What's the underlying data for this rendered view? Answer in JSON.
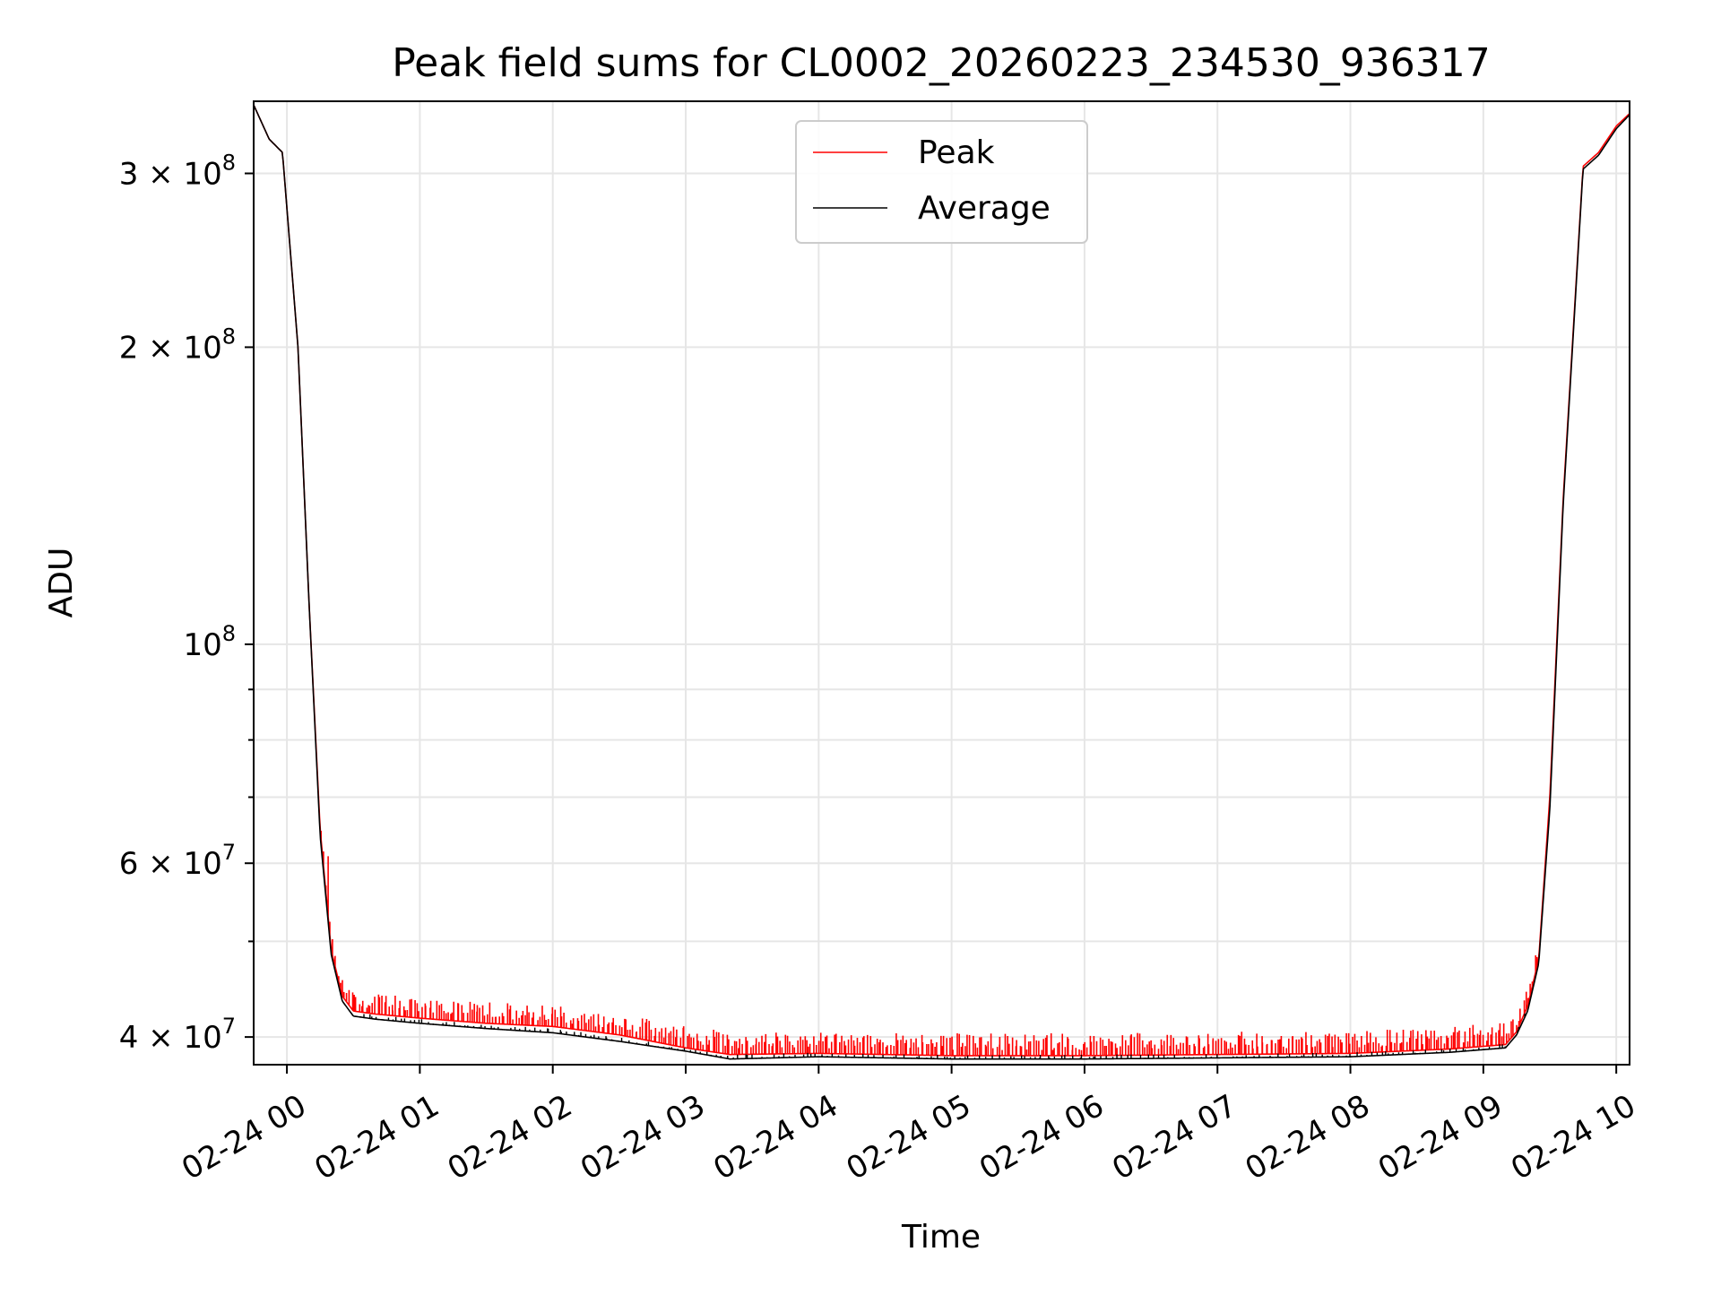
{
  "chart_data": {
    "type": "line",
    "title": "Peak field sums for CL0002_20260223_234530_936317",
    "xlabel": "Time",
    "ylabel": "ADU",
    "yscale": "log",
    "grid": true,
    "legend_position": "top-center",
    "xlim": [
      "2026-02-23T23:45",
      "2026-02-24T10:06"
    ],
    "ylim": [
      37500000,
      355000000
    ],
    "x_ticks": [
      {
        "value": "2026-02-24T00:00",
        "label": "02-24 00"
      },
      {
        "value": "2026-02-24T01:00",
        "label": "02-24 01"
      },
      {
        "value": "2026-02-24T02:00",
        "label": "02-24 02"
      },
      {
        "value": "2026-02-24T03:00",
        "label": "02-24 03"
      },
      {
        "value": "2026-02-24T04:00",
        "label": "02-24 04"
      },
      {
        "value": "2026-02-24T05:00",
        "label": "02-24 05"
      },
      {
        "value": "2026-02-24T06:00",
        "label": "02-24 06"
      },
      {
        "value": "2026-02-24T07:00",
        "label": "02-24 07"
      },
      {
        "value": "2026-02-24T08:00",
        "label": "02-24 08"
      },
      {
        "value": "2026-02-24T09:00",
        "label": "02-24 09"
      },
      {
        "value": "2026-02-24T10:00",
        "label": "02-24 10"
      }
    ],
    "y_ticks": [
      {
        "value": 40000000,
        "base": "4 × 10",
        "exp": "7"
      },
      {
        "value": 60000000,
        "base": "6 × 10",
        "exp": "7"
      },
      {
        "value": 100000000,
        "base": "10",
        "exp": "8"
      },
      {
        "value": 200000000,
        "base": "2 × 10",
        "exp": "8"
      },
      {
        "value": 300000000,
        "base": "3 × 10",
        "exp": "8"
      }
    ],
    "y_minor_ticks": [
      50000000,
      70000000,
      80000000,
      90000000
    ],
    "series": [
      {
        "name": "Peak",
        "color": "#ff0000",
        "x": [
          "2026-02-23T23:45",
          "2026-02-23T23:52",
          "2026-02-23T23:58",
          "2026-02-24T00:05",
          "2026-02-24T00:10",
          "2026-02-24T00:15",
          "2026-02-24T00:20",
          "2026-02-24T00:25",
          "2026-02-24T00:30",
          "2026-02-24T00:40",
          "2026-02-24T01:00",
          "2026-02-24T01:30",
          "2026-02-24T02:00",
          "2026-02-24T02:30",
          "2026-02-24T03:00",
          "2026-02-24T03:20",
          "2026-02-24T04:00",
          "2026-02-24T05:00",
          "2026-02-24T06:00",
          "2026-02-24T07:00",
          "2026-02-24T08:00",
          "2026-02-24T08:45",
          "2026-02-24T09:10",
          "2026-02-24T09:15",
          "2026-02-24T09:20",
          "2026-02-24T09:25",
          "2026-02-24T09:30",
          "2026-02-24T09:36",
          "2026-02-24T09:45",
          "2026-02-24T09:52",
          "2026-02-24T10:00",
          "2026-02-24T10:06"
        ],
        "values": [
          352000000,
          325000000,
          315000000,
          200000000,
          110000000,
          65000000,
          49000000,
          44000000,
          42500000,
          42200000,
          41800000,
          41300000,
          41000000,
          40200000,
          39000000,
          38400000,
          38500000,
          38300000,
          38300000,
          38400000,
          38500000,
          38900000,
          39300000,
          40500000,
          43000000,
          48000000,
          70000000,
          140000000,
          305000000,
          315000000,
          335000000,
          345000000
        ],
        "spikes": {
          "count": 520,
          "x_range": [
            "2026-02-24T00:15",
            "2026-02-24T09:25"
          ],
          "typical_height": 1600000,
          "max_value": 61000000
        }
      },
      {
        "name": "Average",
        "color": "#000000",
        "x": [
          "2026-02-23T23:45",
          "2026-02-23T23:52",
          "2026-02-23T23:58",
          "2026-02-24T00:05",
          "2026-02-24T00:10",
          "2026-02-24T00:15",
          "2026-02-24T00:20",
          "2026-02-24T00:25",
          "2026-02-24T00:30",
          "2026-02-24T00:40",
          "2026-02-24T01:00",
          "2026-02-24T01:30",
          "2026-02-24T02:00",
          "2026-02-24T02:30",
          "2026-02-24T03:00",
          "2026-02-24T03:20",
          "2026-02-24T04:00",
          "2026-02-24T05:00",
          "2026-02-24T06:00",
          "2026-02-24T07:00",
          "2026-02-24T08:00",
          "2026-02-24T08:45",
          "2026-02-24T09:10",
          "2026-02-24T09:15",
          "2026-02-24T09:20",
          "2026-02-24T09:25",
          "2026-02-24T09:30",
          "2026-02-24T09:36",
          "2026-02-24T09:45",
          "2026-02-24T09:52",
          "2026-02-24T10:00",
          "2026-02-24T10:06"
        ],
        "values": [
          352000000,
          325000000,
          315000000,
          200000000,
          110000000,
          64000000,
          48500000,
          43500000,
          42000000,
          41700000,
          41300000,
          40800000,
          40400000,
          39600000,
          38700000,
          38000000,
          38200000,
          38000000,
          38000000,
          38100000,
          38200000,
          38600000,
          39000000,
          40200000,
          42500000,
          47500000,
          68000000,
          138000000,
          303000000,
          313000000,
          333000000,
          344000000
        ]
      }
    ]
  }
}
